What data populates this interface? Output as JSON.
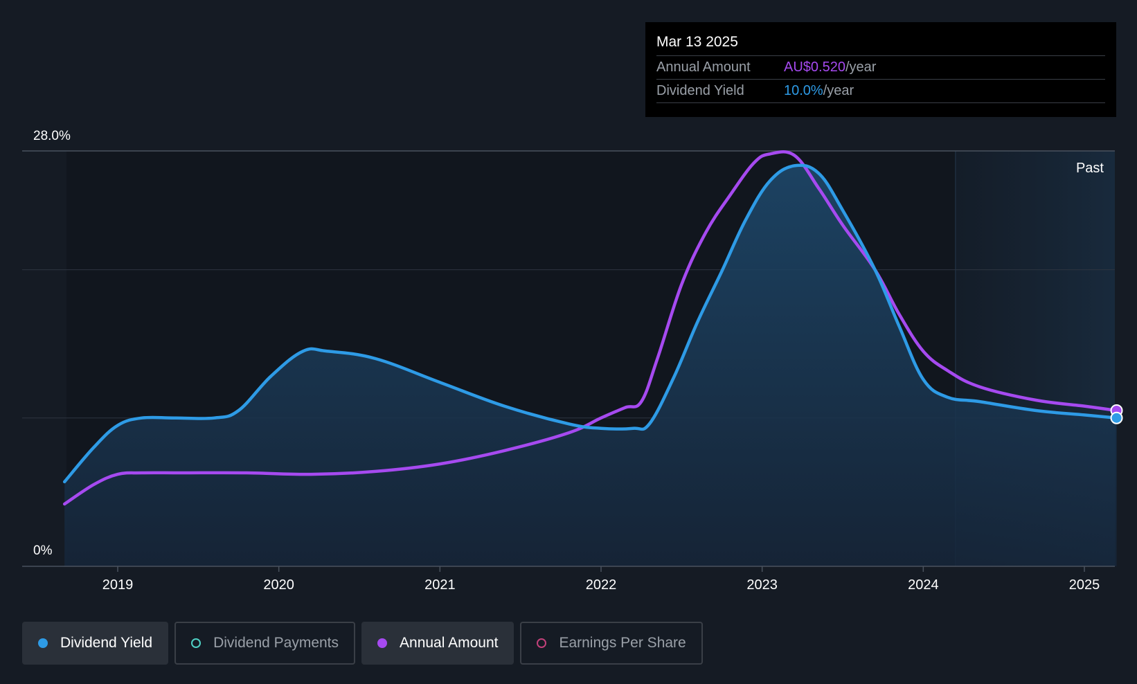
{
  "tooltip": {
    "date": "Mar 13 2025",
    "rows": [
      {
        "label": "Annual Amount",
        "value": "AU$0.520",
        "unit": "/year"
      },
      {
        "label": "Dividend Yield",
        "value": "10.0%",
        "unit": "/year"
      }
    ]
  },
  "past_label": "Past",
  "legend": [
    {
      "label": "Dividend Yield",
      "active": true,
      "color": "#2e9be6",
      "filled": true
    },
    {
      "label": "Dividend Payments",
      "active": false,
      "color": "#4fd1c5",
      "filled": false
    },
    {
      "label": "Annual Amount",
      "active": true,
      "color": "#a64af0",
      "filled": true
    },
    {
      "label": "Earnings Per Share",
      "active": false,
      "color": "#c2417a",
      "filled": false
    }
  ],
  "colors": {
    "background": "#151b24",
    "yield_line": "#2e9be6",
    "amount_line": "#a64af0",
    "grid": "#2e3540"
  },
  "chart_data": {
    "type": "area",
    "ytick_labels": [
      "0%",
      "28.0%"
    ],
    "ylim": [
      0,
      28
    ],
    "xtick_labels": [
      "2019",
      "2020",
      "2021",
      "2022",
      "2023",
      "2024",
      "2025"
    ],
    "xlim": [
      2018.67,
      2025.2
    ],
    "past_region_start": 2024.2,
    "grid": true,
    "series": [
      {
        "name": "Dividend Yield",
        "color": "#2e9be6",
        "fill": true,
        "x": [
          2018.67,
          2018.85,
          2019.0,
          2019.15,
          2019.35,
          2019.6,
          2019.75,
          2019.95,
          2020.15,
          2020.3,
          2020.6,
          2021.0,
          2021.4,
          2021.8,
          2022.0,
          2022.2,
          2022.3,
          2022.45,
          2022.6,
          2022.75,
          2022.9,
          2023.05,
          2023.2,
          2023.35,
          2023.5,
          2023.7,
          2023.85,
          2024.0,
          2024.15,
          2024.35,
          2024.7,
          2025.0,
          2025.2
        ],
        "y": [
          5.7,
          8.0,
          9.5,
          10.0,
          10.0,
          10.0,
          10.5,
          12.8,
          14.5,
          14.5,
          14.0,
          12.4,
          10.8,
          9.6,
          9.3,
          9.3,
          9.6,
          12.7,
          16.5,
          19.9,
          23.4,
          26.0,
          27.0,
          26.5,
          24.0,
          20.0,
          16.2,
          12.6,
          11.4,
          11.1,
          10.5,
          10.2,
          10.0
        ]
      },
      {
        "name": "Annual Amount",
        "color": "#a64af0",
        "fill": false,
        "x": [
          2018.67,
          2018.85,
          2019.0,
          2019.15,
          2019.4,
          2019.8,
          2020.2,
          2020.6,
          2021.0,
          2021.4,
          2021.8,
          2022.0,
          2022.15,
          2022.25,
          2022.35,
          2022.5,
          2022.65,
          2022.8,
          2022.95,
          2023.05,
          2023.2,
          2023.35,
          2023.5,
          2023.7,
          2023.85,
          2024.0,
          2024.15,
          2024.35,
          2024.7,
          2025.0,
          2025.2
        ],
        "y": [
          4.2,
          5.5,
          6.2,
          6.3,
          6.3,
          6.3,
          6.2,
          6.4,
          6.9,
          7.8,
          9.0,
          10.0,
          10.7,
          11.1,
          14.0,
          19.0,
          22.5,
          25.0,
          27.2,
          27.8,
          27.7,
          25.5,
          23.0,
          20.0,
          17.0,
          14.5,
          13.2,
          12.1,
          11.2,
          10.8,
          10.5
        ]
      }
    ]
  }
}
